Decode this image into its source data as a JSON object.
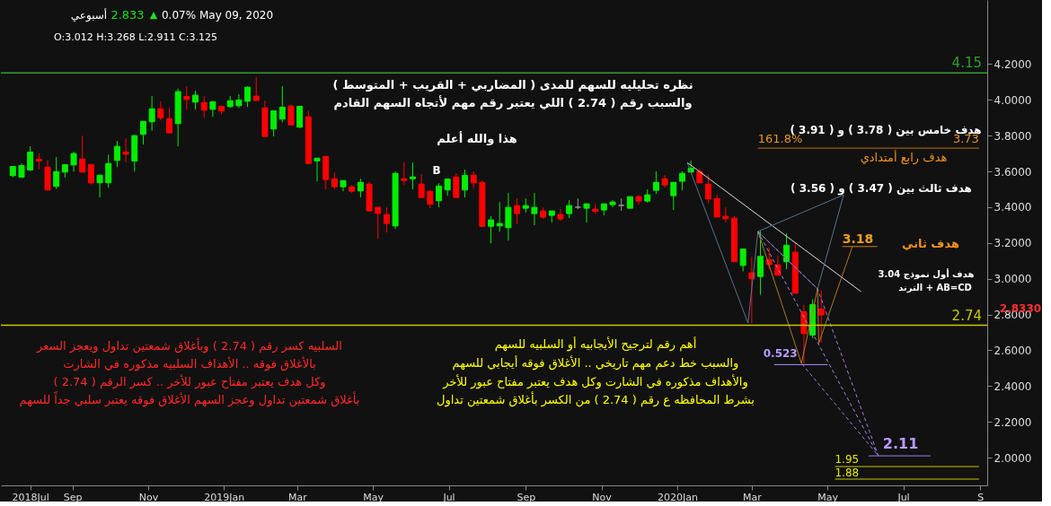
{
  "chart_data": {
    "type": "candlestick",
    "x": [
      "2018-07-15",
      "2018-07-22",
      "2018-07-29",
      "2018-08-05",
      "2018-08-12",
      "2018-08-19",
      "2018-08-26",
      "2018-09-02",
      "2018-09-09",
      "2018-09-16",
      "2018-09-23",
      "2018-09-30",
      "2018-10-07",
      "2018-10-14",
      "2018-10-21",
      "2018-10-28",
      "2018-11-04",
      "2018-11-11",
      "2018-11-18",
      "2018-11-25",
      "2018-12-02",
      "2018-12-09",
      "2018-12-16",
      "2018-12-23",
      "2018-12-30",
      "2019-01-06",
      "2019-01-13",
      "2019-01-20",
      "2019-01-27",
      "2019-02-03",
      "2019-02-10",
      "2019-02-17",
      "2019-02-24",
      "2019-03-03",
      "2019-03-10",
      "2019-03-17",
      "2019-03-24",
      "2019-03-31",
      "2019-04-07",
      "2019-04-14",
      "2019-04-21",
      "2019-04-28",
      "2019-05-05",
      "2019-05-12",
      "2019-05-19",
      "2019-05-26",
      "2019-06-02",
      "2019-06-09",
      "2019-06-16",
      "2019-06-23",
      "2019-06-30",
      "2019-07-07",
      "2019-07-14",
      "2019-07-21",
      "2019-07-28",
      "2019-08-04",
      "2019-08-11",
      "2019-08-18",
      "2019-08-25",
      "2019-09-01",
      "2019-09-08",
      "2019-09-15",
      "2019-09-22",
      "2019-09-29",
      "2019-10-06",
      "2019-10-13",
      "2019-10-20",
      "2019-10-27",
      "2019-11-03",
      "2019-11-10",
      "2019-11-17",
      "2019-11-24",
      "2019-12-01",
      "2019-12-08",
      "2019-12-15",
      "2019-12-22",
      "2019-12-29",
      "2020-01-05",
      "2020-01-12",
      "2020-01-19",
      "2020-01-26",
      "2020-02-02",
      "2020-02-09",
      "2020-02-16",
      "2020-02-23",
      "2020-03-01",
      "2020-03-08",
      "2020-03-15",
      "2020-03-22",
      "2020-03-29",
      "2020-04-05",
      "2020-04-12",
      "2020-04-19",
      "2020-04-26"
    ],
    "ohlc": [
      [
        3.576,
        3.628,
        3.567,
        3.628
      ],
      [
        3.567,
        3.644,
        3.567,
        3.633
      ],
      [
        3.608,
        3.74,
        3.601,
        3.708
      ],
      [
        3.668,
        3.7,
        3.611,
        3.658
      ],
      [
        3.624,
        3.664,
        3.496,
        3.496
      ],
      [
        3.516,
        3.68,
        3.501,
        3.599
      ],
      [
        3.596,
        3.638,
        3.566,
        3.638
      ],
      [
        3.636,
        3.71,
        3.599,
        3.7
      ],
      [
        3.669,
        3.8,
        3.596,
        3.596
      ],
      [
        3.639,
        3.639,
        3.526,
        3.536
      ],
      [
        3.536,
        3.579,
        3.454,
        3.579
      ],
      [
        3.536,
        3.694,
        3.509,
        3.644
      ],
      [
        3.661,
        3.77,
        3.624,
        3.74
      ],
      [
        3.709,
        3.785,
        3.651,
        3.696
      ],
      [
        3.658,
        3.805,
        3.599,
        3.8
      ],
      [
        3.807,
        3.88,
        3.75,
        3.88
      ],
      [
        3.877,
        4.021,
        3.827,
        3.95
      ],
      [
        3.95,
        3.992,
        3.885,
        3.9
      ],
      [
        3.895,
        3.955,
        3.815,
        3.815
      ],
      [
        3.867,
        4.062,
        3.74,
        4.046
      ],
      [
        4.019,
        4.076,
        3.945,
        4.002
      ],
      [
        3.987,
        4.051,
        3.945,
        4.026
      ],
      [
        3.985,
        4.021,
        3.9,
        3.942
      ],
      [
        3.947,
        3.995,
        3.905,
        3.989
      ],
      [
        3.964,
        3.964,
        3.92,
        3.937
      ],
      [
        3.962,
        4.021,
        3.955,
        3.995
      ],
      [
        3.967,
        4.031,
        3.955,
        3.999
      ],
      [
        3.992,
        4.076,
        3.96,
        4.071
      ],
      [
        4.021,
        4.126,
        3.996,
        3.996
      ],
      [
        3.955,
        3.996,
        3.795,
        3.795
      ],
      [
        3.837,
        3.939,
        3.795,
        3.939
      ],
      [
        3.892,
        4.076,
        3.875,
        3.959
      ],
      [
        3.965,
        3.975,
        3.855,
        3.86
      ],
      [
        3.847,
        3.964,
        3.842,
        3.964
      ],
      [
        3.905,
        3.94,
        3.639,
        3.644
      ],
      [
        3.659,
        3.674,
        3.544,
        3.674
      ],
      [
        3.684,
        3.684,
        3.499,
        3.554
      ],
      [
        3.559,
        3.594,
        3.499,
        3.514
      ],
      [
        3.514,
        3.549,
        3.489,
        3.549
      ],
      [
        3.514,
        3.524,
        3.479,
        3.489
      ],
      [
        3.491,
        3.559,
        3.454,
        3.539
      ],
      [
        3.529,
        3.543,
        3.374,
        3.379
      ],
      [
        3.399,
        3.399,
        3.223,
        3.365
      ],
      [
        3.359,
        3.399,
        3.258,
        3.309
      ],
      [
        3.295,
        3.6,
        3.279,
        3.589
      ],
      [
        3.559,
        3.65,
        3.524,
        3.549
      ],
      [
        3.559,
        3.65,
        3.499,
        3.569
      ],
      [
        3.529,
        3.584,
        3.454,
        3.454
      ],
      [
        3.489,
        3.494,
        3.394,
        3.416
      ],
      [
        3.436,
        3.534,
        3.399,
        3.518
      ],
      [
        3.496,
        3.558,
        3.464,
        3.558
      ],
      [
        3.569,
        3.589,
        3.454,
        3.454
      ],
      [
        3.496,
        3.61,
        3.454,
        3.578
      ],
      [
        3.579,
        3.6,
        3.504,
        3.536
      ],
      [
        3.539,
        3.549,
        3.289,
        3.293
      ],
      [
        3.293,
        3.349,
        3.198,
        3.329
      ],
      [
        3.295,
        3.429,
        3.263,
        3.309
      ],
      [
        3.285,
        3.479,
        3.213,
        3.399
      ],
      [
        3.409,
        3.449,
        3.304,
        3.364
      ],
      [
        3.394,
        3.449,
        3.369,
        3.409
      ],
      [
        3.364,
        3.479,
        3.299,
        3.399
      ],
      [
        3.379,
        3.399,
        3.334,
        3.344
      ],
      [
        3.354,
        3.379,
        3.314,
        3.379
      ],
      [
        3.359,
        3.389,
        3.324,
        3.334
      ],
      [
        3.364,
        3.439,
        3.339,
        3.409
      ],
      [
        3.4,
        3.449,
        3.389,
        3.4
      ],
      [
        3.394,
        3.419,
        3.314,
        3.419
      ],
      [
        3.389,
        3.419,
        3.364,
        3.377
      ],
      [
        3.384,
        3.419,
        3.354,
        3.419
      ],
      [
        3.414,
        3.439,
        3.399,
        3.429
      ],
      [
        3.41,
        3.449,
        3.379,
        3.41
      ],
      [
        3.394,
        3.459,
        3.394,
        3.459
      ],
      [
        3.459,
        3.469,
        3.414,
        3.434
      ],
      [
        3.434,
        3.499,
        3.424,
        3.469
      ],
      [
        3.494,
        3.6,
        3.474,
        3.539
      ],
      [
        3.559,
        3.579,
        3.509,
        3.524
      ],
      [
        3.464,
        3.539,
        3.384,
        3.539
      ],
      [
        3.545,
        3.6,
        3.494,
        3.589
      ],
      [
        3.596,
        3.66,
        3.595,
        3.618
      ],
      [
        3.599,
        3.613,
        3.536,
        3.536
      ],
      [
        3.529,
        3.583,
        3.421,
        3.446
      ],
      [
        3.449,
        3.471,
        3.345,
        3.345
      ],
      [
        3.349,
        3.399,
        3.315,
        3.335
      ],
      [
        3.339,
        3.349,
        3.095,
        3.095
      ],
      [
        3.074,
        3.166,
        3.041,
        3.166
      ],
      [
        3.033,
        3.123,
        2.752,
        2.999
      ],
      [
        3.012,
        3.268,
        2.911,
        3.125
      ],
      [
        3.106,
        3.176,
        3.053,
        3.079
      ],
      [
        3.078,
        3.131,
        3.019,
        3.019
      ],
      [
        3.095,
        3.253,
        3.053,
        3.187
      ],
      [
        3.148,
        3.203,
        2.919,
        2.919
      ],
      [
        2.815,
        2.855,
        2.526,
        2.693
      ],
      [
        2.685,
        2.885,
        2.668,
        2.855
      ],
      [
        2.83,
        2.936,
        2.643,
        2.797
      ]
    ],
    "colors": [
      "#00ee00",
      "#00ee00",
      "#00ee00",
      "#ff0000",
      "#ff0000",
      "#00ee00",
      "#00ee00",
      "#00ee00",
      "#ff0000",
      "#ff0000",
      "#00ee00",
      "#00ee00",
      "#00ee00",
      "#ff0000",
      "#00ee00",
      "#00ee00",
      "#00ee00",
      "#ff0000",
      "#ff0000",
      "#00ee00",
      "#ff0000",
      "#00ee00",
      "#ff0000",
      "#00ee00",
      "#ff0000",
      "#00ee00",
      "#00ee00",
      "#00ee00",
      "#ff0000",
      "#ff0000",
      "#00ee00",
      "#00ee00",
      "#ff0000",
      "#00ee00",
      "#ff0000",
      "#00ee00",
      "#ff0000",
      "#ff0000",
      "#00ee00",
      "#ff0000",
      "#00ee00",
      "#ff0000",
      "#ff0000",
      "#ff0000",
      "#00ee00",
      "#ff0000",
      "#00ee00",
      "#ff0000",
      "#ff0000",
      "#00ee00",
      "#00ee00",
      "#ff0000",
      "#00ee00",
      "#ff0000",
      "#ff0000",
      "#00ee00",
      "#00ee00",
      "#00ee00",
      "#ff0000",
      "#00ee00",
      "#00ee00",
      "#ff0000",
      "#00ee00",
      "#ff0000",
      "#00ee00",
      "#999999",
      "#00ee00",
      "#ff0000",
      "#00ee00",
      "#00ee00",
      "#999999",
      "#00ee00",
      "#ff0000",
      "#00ee00",
      "#00ee00",
      "#ff0000",
      "#00ee00",
      "#00ee00",
      "#00ee00",
      "#ff0000",
      "#ff0000",
      "#ff0000",
      "#ff0000",
      "#ff0000",
      "#00ee00",
      "#ff0000",
      "#00ee00",
      "#ff0000",
      "#ff0000",
      "#00ee00",
      "#ff0000",
      "#ff0000",
      "#00ee00",
      "#ff0000"
    ],
    "series": [
      {
        "type": "line",
        "color": "#c07010",
        "x": [
          "2020-03-06",
          "2020-08-31"
        ],
        "values": [
          3.73,
          3.73
        ]
      },
      {
        "type": "line",
        "color": "#d08010",
        "x": [
          "2020-05-13",
          "2020-06-10"
        ],
        "values": [
          3.18,
          3.18
        ]
      },
      {
        "type": "line",
        "color": "#a080e0",
        "x": [
          "2020-06-03",
          "2020-07-23"
        ],
        "values": [
          2.01,
          2.01
        ]
      },
      {
        "type": "line",
        "color": "#b090ff",
        "x": [
          "2020-03-19",
          "2020-05-01"
        ],
        "values": [
          2.52,
          2.52
        ]
      },
      {
        "type": "line",
        "color": "#c8c800",
        "x": [
          "2020-05-07",
          "2020-08-31"
        ],
        "values": [
          1.95,
          1.95
        ]
      },
      {
        "type": "line",
        "color": "#c8c800",
        "x": [
          "2020-05-07",
          "2020-08-31"
        ],
        "values": [
          1.88,
          1.88
        ]
      },
      {
        "type": "line",
        "color": "#dddddd",
        "x": [
          "2020-01-09",
          "2020-05-28"
        ],
        "values": [
          3.65,
          2.928
        ]
      },
      {
        "type": "line",
        "color": "#5a7290",
        "x": [
          "2020-01-09",
          "2020-02-27",
          "2020-03-06",
          "2020-05-14",
          "2020-04-23",
          "2020-03-06"
        ],
        "values": [
          3.65,
          2.752,
          3.264,
          3.469,
          2.943,
          3.264
        ]
      },
      {
        "type": "line",
        "color": "#b07a25",
        "x": [
          "2020-03-06",
          "2020-04-10",
          "2020-04-23",
          "2020-04-24",
          "2020-05-21"
        ],
        "values": [
          3.264,
          2.527,
          2.943,
          2.64,
          3.18
        ]
      },
      {
        "type": "line",
        "color": "#a080e0",
        "line_style": "dashed",
        "x": [
          "2020-03-06",
          "2020-06-11",
          "2020-04-10"
        ],
        "values": [
          3.264,
          2.01,
          2.527
        ]
      },
      {
        "type": "line",
        "color": "#a080e0",
        "line_style": "dashed",
        "x": [
          "2020-03-06",
          "2020-04-23",
          "2020-06-11"
        ],
        "values": [
          3.264,
          2.943,
          2.01
        ]
      }
    ],
    "xlim": [
      "2018-07-09",
      "2020-09-03"
    ],
    "xticks": [
      {
        "value": "2018-07-29",
        "label": "2018Jul"
      },
      {
        "value": "2018-09-01",
        "label": "Sep"
      },
      {
        "value": "2018-11-01",
        "label": "Nov"
      },
      {
        "value": "2019-01-01",
        "label": "2019Jan"
      },
      {
        "value": "2019-03-01",
        "label": "Mar"
      },
      {
        "value": "2019-05-01",
        "label": "May"
      },
      {
        "value": "2019-07-01",
        "label": "Jul"
      },
      {
        "value": "2019-09-01",
        "label": "Sep"
      },
      {
        "value": "2019-11-01",
        "label": "Nov"
      },
      {
        "value": "2020-01-01",
        "label": "2020Jan"
      },
      {
        "value": "2020-03-01",
        "label": "Mar"
      },
      {
        "value": "2020-05-01",
        "label": "May"
      },
      {
        "value": "2020-07-01",
        "label": "Jul"
      },
      {
        "value": "2020-09-01",
        "label": "S"
      }
    ],
    "ylim": [
      1.845,
      4.558
    ],
    "yticks": [
      {
        "value": 2.0,
        "label": "2.0000"
      },
      {
        "value": 2.2,
        "label": "2.2000"
      },
      {
        "value": 2.4,
        "label": "2.4000"
      },
      {
        "value": 2.6,
        "label": "2.6000"
      },
      {
        "value": 2.8,
        "label": "2.8000"
      },
      {
        "value": 3.0,
        "label": "3.0000"
      },
      {
        "value": 3.2,
        "label": "3.2000"
      },
      {
        "value": 3.4,
        "label": "3.4000"
      },
      {
        "value": 3.6,
        "label": "3.6000"
      },
      {
        "value": 3.8,
        "label": "3.8000"
      },
      {
        "value": 4.0,
        "label": "4.0000"
      },
      {
        "value": 4.2,
        "label": "4.2000"
      }
    ],
    "ref_lines": [
      {
        "axis": "y",
        "value": 4.15,
        "label": "4.15",
        "color": "#2ca02c"
      },
      {
        "axis": "y",
        "value": 2.74,
        "label": "2.74",
        "color": "#c8c800"
      }
    ],
    "annotations": [
      {
        "text": "161.8%",
        "x": "2020-03-06",
        "y": 3.73
      },
      {
        "text": "3.73",
        "x": "2020-08-31",
        "y": 3.73
      },
      {
        "text": "3.18",
        "x": "2020-05-13",
        "y": 3.18
      },
      {
        "text": "0.523",
        "x": "2020-03-19",
        "y": 2.52
      },
      {
        "text": "2.11",
        "x": "2020-06-11",
        "y": 2.01
      },
      {
        "text": "1.95",
        "x": "2020-05-07",
        "y": 1.95
      },
      {
        "text": "1.88",
        "x": "2020-05-07",
        "y": 1.88
      },
      "نظره تحليليه للسهم للمدى ( المضاربي + القريب + المتوسط )",
      "والسبب رقم ( 2.74 ) اللي يعتبر رقم مهم لأتجاه السهم القادم",
      "هذا والله أعلم",
      "السلبيه كسر رقم ( 2.74 ) وبأغلاق شمعتين تداول ويعجز السعر",
      "بالأغلاق فوقه .. الأهداف السلبيه مذكوره في الشارت",
      "وكل هدف يعتبر مفتاح عبور للأخر .. كسر الرقم ( 2.74 )",
      "بأغلاق شمعتين تداول وعجز السهم الأغلاق فوقه يعتبر سلبي جداً للسهم",
      "أهم رقم لترجيح الأيجابيه أو السلبيه للسهم",
      "والسبب خط دعم مهم تاريخي .. الأغلاق فوقه أيجابي للسهم",
      "والأهداف مذكوره في الشارت وكل هدف يعتبر مفتاح عبور للأخر",
      "بشرط المحافظه ع رقم ( 2.74 ) من الكسر بأغلاق شمعتين تداول",
      "هدف خامس بين ( 3.78 ) و ( 3.91 )",
      "هدف رابع أمتدادي",
      "هدف ثالث بين ( 3.47 ) و ( 3.56 )",
      "هدف ثاني",
      "هدف أول نموذج 3.04",
      "الترند + AB=CD",
      "B",
      "أسبوعي",
      "2.833",
      "▲",
      "0.07%",
      "May 09, 2020",
      "O:3.012  H:3.268  L:2.911  C:3.125",
      "2.8330"
    ]
  }
}
